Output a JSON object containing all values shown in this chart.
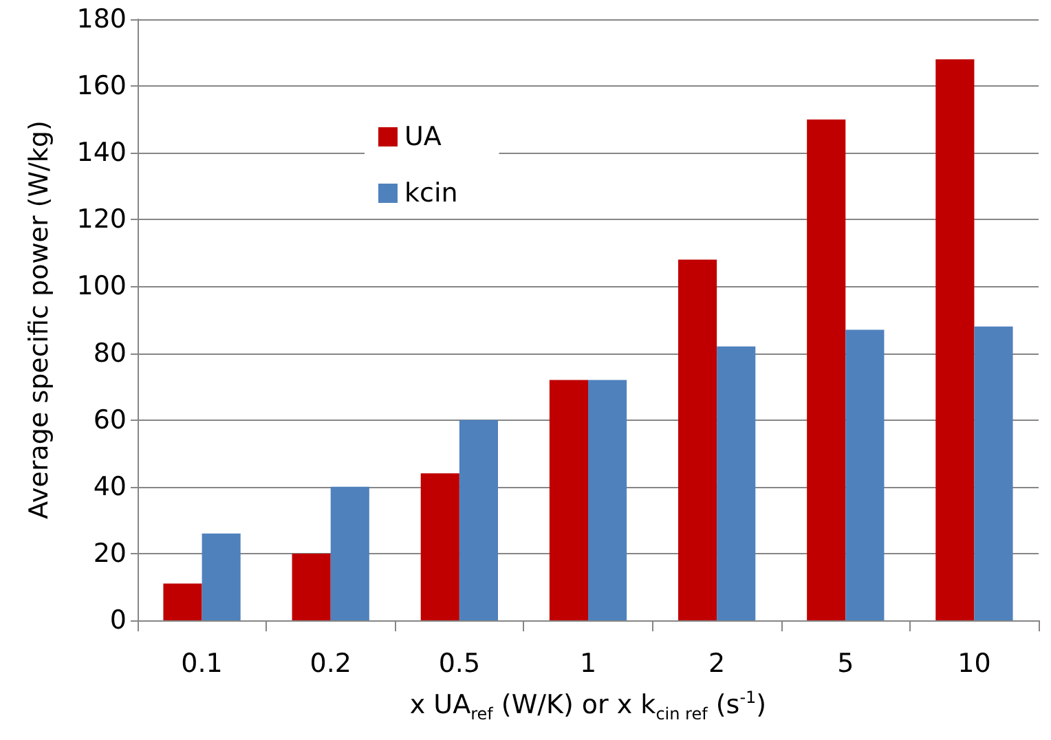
{
  "chart_data": {
    "type": "bar",
    "xlabel": "x UA$_{ref}$ (W/K) or x k$_{cin ref}$ (s$^{-1}$)",
    "ylabel": "Average specific power (W/kg)",
    "categories": [
      "0.1",
      "0.2",
      "0.5",
      "1",
      "2",
      "5",
      "10"
    ],
    "series": [
      {
        "name": "UA",
        "color": "#c00000",
        "values": [
          11,
          20,
          44,
          72,
          108,
          150,
          168
        ]
      },
      {
        "name": "kcin",
        "color": "#4f81bd",
        "values": [
          26,
          40,
          60,
          72,
          82,
          87,
          88
        ]
      }
    ],
    "ylim": [
      0,
      180
    ],
    "yticks": [
      0,
      20,
      40,
      60,
      80,
      100,
      120,
      140,
      160,
      180
    ],
    "grid": "y",
    "legend": "top left"
  }
}
